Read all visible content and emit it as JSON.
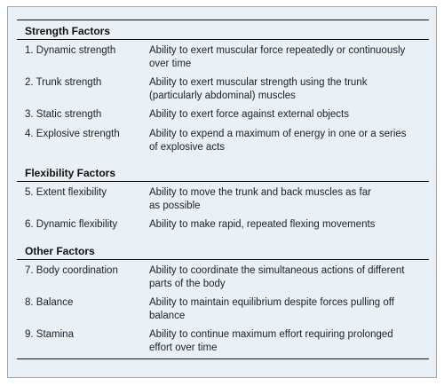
{
  "sections": [
    {
      "title": "Strength Factors",
      "rows": [
        {
          "factor": "1.  Dynamic strength",
          "lines": [
            "Ability to exert muscular force repeatedly or continuously",
            "over time"
          ]
        },
        {
          "factor": "2.  Trunk strength",
          "lines": [
            "Ability to exert muscular strength using the trunk",
            "(particularly abdominal) muscles"
          ]
        },
        {
          "factor": "3.  Static strength",
          "lines": [
            "Ability to exert force against external objects"
          ]
        },
        {
          "factor": "4.  Explosive strength",
          "lines": [
            "Ability to expend a maximum of energy in one or a series",
            "of explosive acts"
          ]
        }
      ]
    },
    {
      "title": "Flexibility Factors",
      "rows": [
        {
          "factor": "5.  Extent flexibility",
          "lines": [
            "Ability to move the trunk and back muscles as far",
            "as possible"
          ]
        },
        {
          "factor": "6.  Dynamic flexibility",
          "lines": [
            "Ability to make rapid, repeated flexing movements"
          ]
        }
      ]
    },
    {
      "title": "Other Factors",
      "rows": [
        {
          "factor": "7.  Body coordination",
          "lines": [
            "Ability to coordinate the simultaneous actions of different",
            "parts of the body"
          ]
        },
        {
          "factor": "8.  Balance",
          "lines": [
            "Ability to maintain equilibrium despite forces pulling off",
            "balance"
          ]
        },
        {
          "factor": "9.  Stamina",
          "lines": [
            "Ability to continue maximum effort requiring prolonged",
            "effort over time"
          ]
        }
      ]
    }
  ]
}
